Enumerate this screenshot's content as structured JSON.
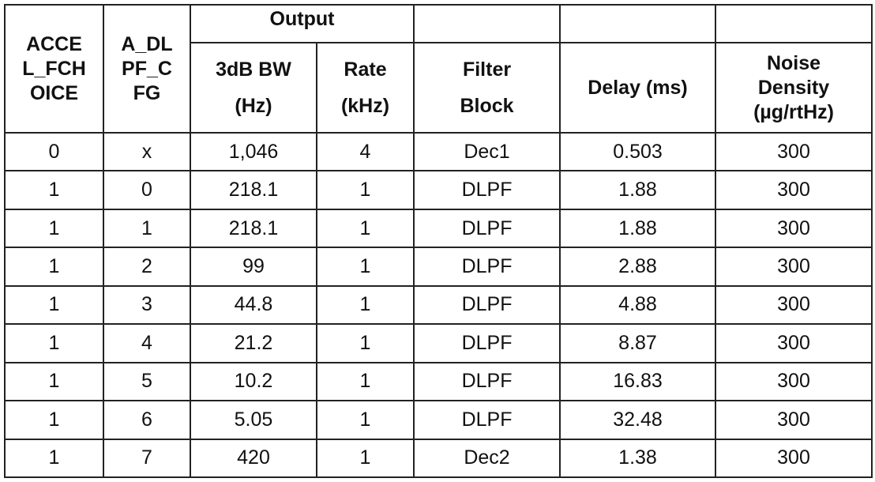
{
  "table": {
    "headers": {
      "accel_fchoice": [
        "ACCE",
        "L_FCH",
        "OICE"
      ],
      "a_dlpf_cfg": [
        "A_DL",
        "PF_C",
        "FG"
      ],
      "output": "Output",
      "bw": [
        "3dB BW",
        "(Hz)"
      ],
      "rate": [
        "Rate",
        "(kHz)"
      ],
      "filter_block": [
        "Filter",
        "Block"
      ],
      "delay": "Delay (ms)",
      "noise_density": [
        "Noise",
        "Density",
        "(µg/rtHz)"
      ]
    },
    "rows": [
      [
        "0",
        "x",
        "1,046",
        "4",
        "Dec1",
        "0.503",
        "300"
      ],
      [
        "1",
        "0",
        "218.1",
        "1",
        "DLPF",
        "1.88",
        "300"
      ],
      [
        "1",
        "1",
        "218.1",
        "1",
        "DLPF",
        "1.88",
        "300"
      ],
      [
        "1",
        "2",
        "99",
        "1",
        "DLPF",
        "2.88",
        "300"
      ],
      [
        "1",
        "3",
        "44.8",
        "1",
        "DLPF",
        "4.88",
        "300"
      ],
      [
        "1",
        "4",
        "21.2",
        "1",
        "DLPF",
        "8.87",
        "300"
      ],
      [
        "1",
        "5",
        "10.2",
        "1",
        "DLPF",
        "16.83",
        "300"
      ],
      [
        "1",
        "6",
        "5.05",
        "1",
        "DLPF",
        "32.48",
        "300"
      ],
      [
        "1",
        "7",
        "420",
        "1",
        "Dec2",
        "1.38",
        "300"
      ]
    ]
  }
}
